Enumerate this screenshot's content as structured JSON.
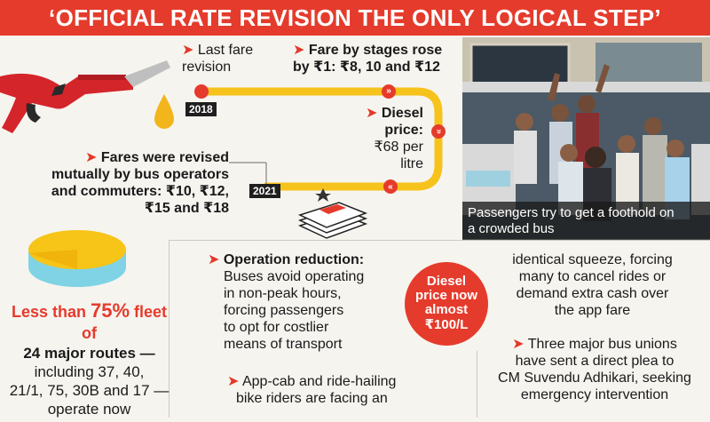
{
  "header": {
    "title": "‘OFFICIAL RATE REVISION THE ONLY LOGICAL STEP’"
  },
  "timeline": {
    "last_revision": {
      "line1": "Last fare",
      "line2": "revision"
    },
    "stages": {
      "line1": "Fare by stages rose",
      "line2": "by ₹1: ₹8, 10 and ₹12"
    },
    "diesel": {
      "line1": "Diesel",
      "line2": "price:",
      "line3": "₹68 per",
      "line4": "litre"
    },
    "revised": {
      "line1": "Fares were revised",
      "line2": "mutually by bus operators",
      "line3": "and commuters: ₹10, ₹12,",
      "line4": "₹15 and ₹18"
    },
    "year_start": "2018",
    "year_end": "2021",
    "chevron": "»"
  },
  "photo": {
    "caption_line1": "Passengers try to get a foothold on",
    "caption_line2": "a crowded bus"
  },
  "fleet": {
    "prefix": "Less than ",
    "percent": "75%",
    "suffix": " fleet of",
    "line1": "24 major routes —",
    "line2": "including 37, 40,",
    "line3": "21/1, 75, 30B and 17 —",
    "line4": "operate now"
  },
  "operation": {
    "heading": "Operation reduction:",
    "line1": "Buses avoid operating",
    "line2": "in non-peak hours,",
    "line3": "forcing passengers",
    "line4": "to opt for costlier",
    "line5": "means of transport",
    "appcab1": "App-cab and ride-hailing",
    "appcab2": "bike riders are facing an"
  },
  "badge": {
    "line1": "Diesel",
    "line2": "price now",
    "line3": "almost",
    "line4": "₹100/L"
  },
  "right": {
    "line1": "identical squeeze, forcing",
    "line2": "many to cancel rides or",
    "line3": "demand extra cash over",
    "line4": "the app fare",
    "unions1": "Three major bus unions",
    "unions2": "have sent a direct plea to",
    "unions3": "CM Suvendu Adhikari, seeking",
    "unions4": "emergency intervention"
  },
  "colors": {
    "accent": "#e53b2c",
    "track": "#f6c21c",
    "pie_top": "#f7c418",
    "pie_side": "#7fd3e4"
  },
  "icons": [
    "fuel-nozzle-icon",
    "fuel-drop-icon",
    "money-stack-icon",
    "pie-chart-icon",
    "arrow-marker-icon"
  ]
}
